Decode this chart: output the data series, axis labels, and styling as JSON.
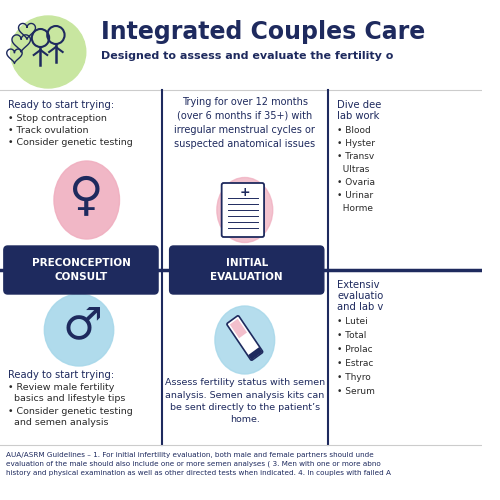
{
  "title": "Integrated Couples Care",
  "subtitle": "Designed to assess and evaluate the fertility o",
  "bg_color": "#ffffff",
  "dark_navy": "#1e2a5e",
  "pink_color": "#f0afc0",
  "blue_color": "#a8d8ea",
  "green_color": "#c8e6a0",
  "text_color": "#1e2a5e",
  "light_text": "#2a2a2a",
  "footer_text": "AUA/ASRM Guidelines – 1. For initial infertility evaluation, both male and female partners should unde\nevaluation of the male should also include one or more semen analyses ( 3. Men with one or more abno\nhistory and physical examination as well as other directed tests when indicated. 4. In couples with failed A",
  "col1_label": "PRECONCEPTION\nCONSULT",
  "col2_label": "INITIAL\nEVALUATION",
  "female_ready": "Ready to start trying:",
  "female_bullets": [
    "• Stop contraception",
    "• Track ovulation",
    "• Consider genetic testing"
  ],
  "male_ready": "Ready to start trying:",
  "male_bullet1": "• Review male fertility",
  "male_bullet1b": "  basics and lifestyle tips",
  "male_bullet2": "• Consider genetic testing",
  "male_bullet2b": "  and semen analysis",
  "center_top_text": "Trying for over 12 months\n(over 6 months if 35+) with\nirregular menstrual cycles or\nsuspected anatomical issues",
  "center_bottom_text": "Assess fertility status with semen\nanalysis. Semen analysis kits can\nbe sent directly to the patient’s\nhome.",
  "right_top_header": "Dive dee",
  "right_top_sub": "lab work",
  "right_top_bullets": [
    "• Blood",
    "• Hyster",
    "• Transv",
    "  Ultras",
    "• Ovaria",
    "• Urinar",
    "  Horme"
  ],
  "right_bot_header": "Extensiv",
  "right_bot_sub1": "evaluatio",
  "right_bot_sub2": "and lab v",
  "right_bot_bullets": [
    "• Lutei",
    "• Total",
    "• Prolac",
    "• Estrac",
    "• Thyro",
    "• Serum"
  ]
}
